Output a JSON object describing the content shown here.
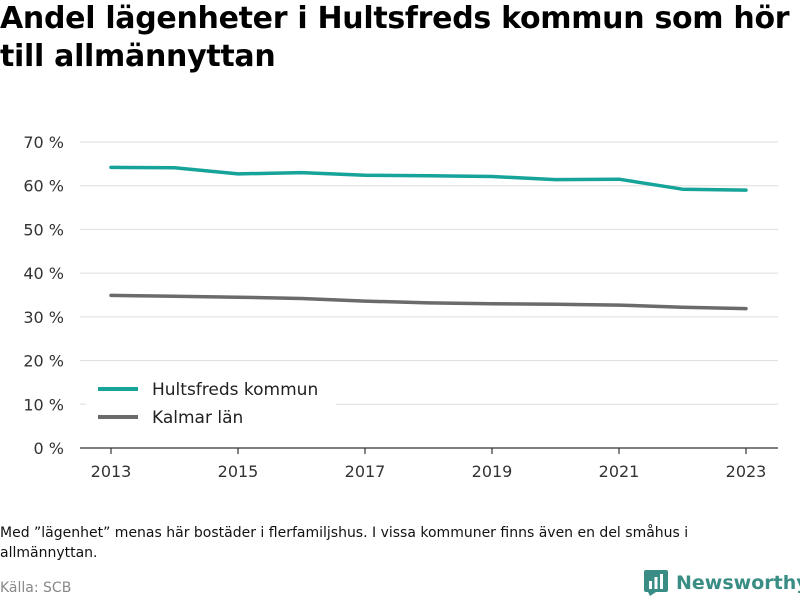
{
  "page": {
    "title": "Andel lägenheter i Hultsfreds kommun som hör till allmännyttan",
    "note": "Med ”lägenhet” menas här bostäder i flerfamiljshus. I vissa kommuner finns även en del småhus i allmännyttan.",
    "source": "Källa: SCB",
    "brand": "Newsworthy"
  },
  "chart_data": {
    "type": "line",
    "title": "Andel lägenheter i Hultsfreds kommun som hör till allmännyttan",
    "xlabel": "",
    "ylabel": "",
    "x": [
      2013,
      2014,
      2015,
      2016,
      2017,
      2018,
      2019,
      2020,
      2021,
      2022,
      2023
    ],
    "xticks": [
      2013,
      2015,
      2017,
      2019,
      2021,
      2023
    ],
    "ylim": [
      0,
      70
    ],
    "yticks": [
      0,
      10,
      20,
      30,
      40,
      50,
      60,
      70
    ],
    "ytick_labels": [
      "0 %",
      "10 %",
      "20 %",
      "30 %",
      "40 %",
      "50 %",
      "60 %",
      "70 %"
    ],
    "grid": true,
    "legend_position": "bottom-left",
    "series": [
      {
        "name": "Hultsfreds kommun",
        "color": "#16a39a",
        "values": [
          64.2,
          64.1,
          62.7,
          63.0,
          62.4,
          62.3,
          62.1,
          61.4,
          61.5,
          59.2,
          59.0
        ]
      },
      {
        "name": "Kalmar län",
        "color": "#6b6b6b",
        "values": [
          34.9,
          34.7,
          34.5,
          34.2,
          33.6,
          33.2,
          33.0,
          32.9,
          32.7,
          32.2,
          31.9
        ]
      }
    ]
  },
  "colors": {
    "grid": "#dddddd",
    "axis": "#333333",
    "brand": "#3a8d84",
    "source_text": "#888888"
  }
}
